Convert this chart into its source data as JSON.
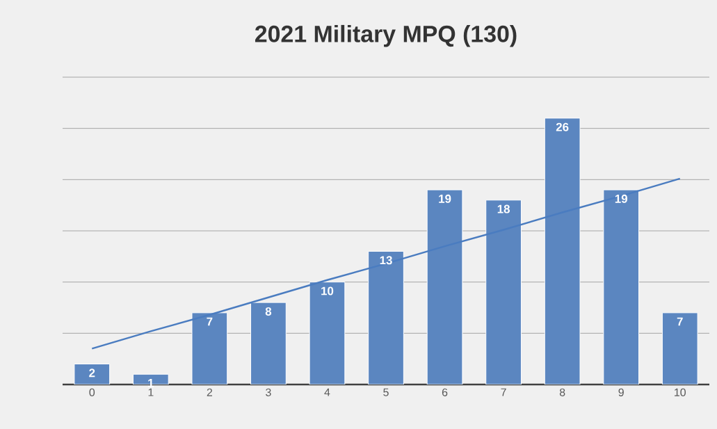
{
  "chart_data": {
    "type": "bar",
    "title": "2021 Military MPQ (130)",
    "categories": [
      "0",
      "1",
      "2",
      "3",
      "4",
      "5",
      "6",
      "7",
      "8",
      "9",
      "10"
    ],
    "series": [
      {
        "color": "#5b86c0",
        "values": [
          2,
          1,
          7,
          8,
          10,
          13,
          19,
          18,
          26,
          19,
          7
        ],
        "value_labels": [
          "2",
          "1",
          "7",
          "8",
          "10",
          "13",
          "19",
          "18",
          "26",
          "19",
          "7"
        ]
      },
      {
        "type": "line",
        "color": "#4a7cc0",
        "values": [
          3.5,
          5.2,
          6.8,
          8.5,
          10.2,
          11.8,
          13.5,
          15.1,
          16.8,
          18.4,
          20.1
        ]
      }
    ],
    "ylim": [
      0,
      30
    ],
    "yticks": [
      {
        "value": 0,
        "label": null
      },
      {
        "value": 5,
        "label": null
      },
      {
        "value": 10,
        "label": null
      },
      {
        "value": 15,
        "label": null
      },
      {
        "value": 20,
        "label": null
      },
      {
        "value": 25,
        "label": null
      },
      {
        "value": 30,
        "label": null
      }
    ],
    "grid": "y"
  }
}
